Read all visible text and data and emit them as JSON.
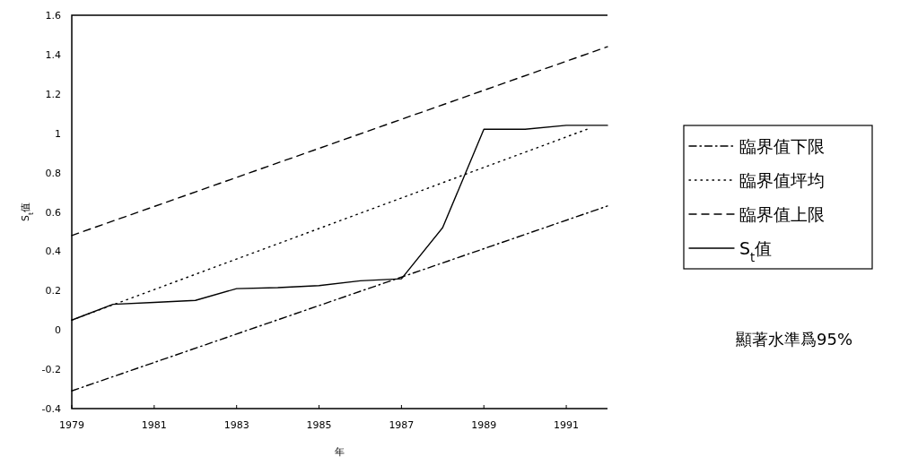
{
  "chart_data": {
    "type": "line",
    "xlabel": "年",
    "ylabel": "S$_{t}$值",
    "annotations": [
      "顯著水準爲95%"
    ],
    "x": [
      1979,
      1980,
      1981,
      1982,
      1983,
      1984,
      1985,
      1986,
      1987,
      1988,
      1989,
      1990,
      1991,
      1992
    ],
    "xlim": [
      1979,
      1992
    ],
    "xticks": [
      1979,
      1981,
      1983,
      1985,
      1987,
      1989,
      1991
    ],
    "ylim": [
      -0.4,
      1.6
    ],
    "yticks": [
      -0.4,
      -0.2,
      0,
      0.2,
      0.4,
      0.6,
      0.8,
      1,
      1.2,
      1.4,
      1.6
    ],
    "grid": false,
    "legend": "right",
    "series": [
      {
        "name": "臨界值下限",
        "color": "#000000",
        "line_style": "dashdot",
        "x": [
          1979,
          1992
        ],
        "values": [
          -0.31,
          0.63
        ]
      },
      {
        "name": "臨界值坪均",
        "color": "#000000",
        "line_style": "dotted",
        "x": [
          1979,
          1991.5
        ],
        "values": [
          0.05,
          1.02
        ]
      },
      {
        "name": "臨界值上限",
        "color": "#000000",
        "line_style": "dashed",
        "x": [
          1979,
          1992
        ],
        "values": [
          0.48,
          1.44
        ]
      },
      {
        "name": "S$_{t}$值",
        "color": "#000000",
        "line_style": "solid",
        "values": [
          0.05,
          0.13,
          0.14,
          0.15,
          0.21,
          0.215,
          0.225,
          0.25,
          0.26,
          0.52,
          1.02,
          1.02,
          1.04,
          1.04
        ]
      }
    ]
  }
}
